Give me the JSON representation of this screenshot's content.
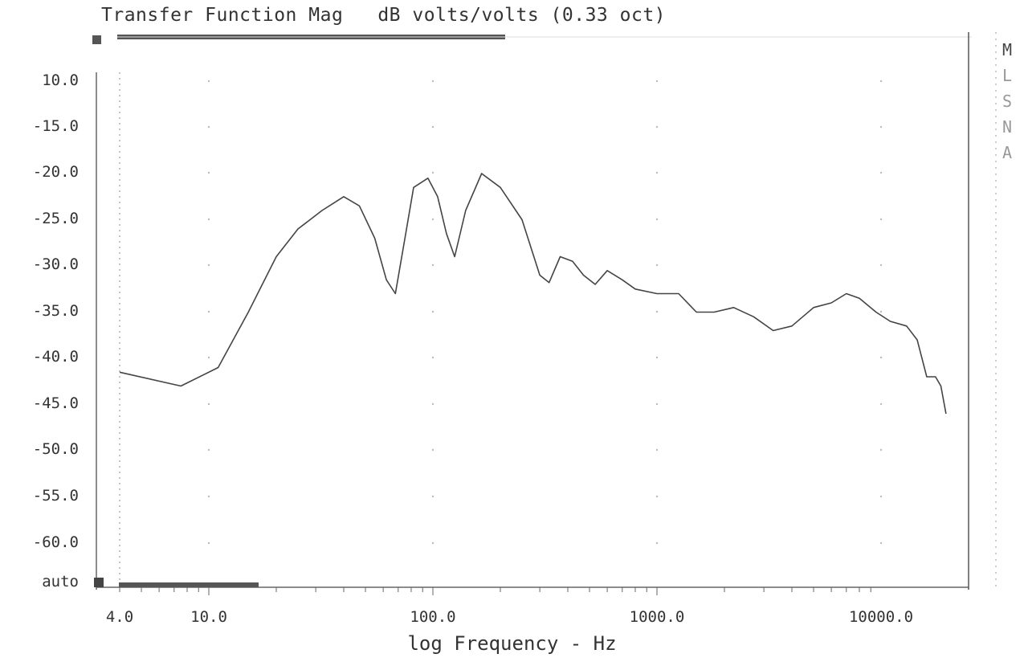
{
  "title": "Transfer Function Mag   dB volts/volts (0.33 oct)",
  "xlabel": "log Frequency - Hz",
  "side_menu": [
    "M",
    "L",
    "S",
    "N",
    "A"
  ],
  "chart_data": {
    "type": "line",
    "title": "Transfer Function Mag   dB volts/volts (0.33 oct)",
    "xlabel": "log Frequency - Hz",
    "ylabel": "",
    "xscale": "log",
    "xlim": [
      3.5,
      20000
    ],
    "ylim": [
      -65,
      12.5
    ],
    "grid": false,
    "y_tick_labels": [
      "10.0",
      "-15.0",
      "-20.0",
      "-25.0",
      "-30.0",
      "-35.0",
      "-40.0",
      "-45.0",
      "-50.0",
      "-55.0",
      "-60.0",
      "auto"
    ],
    "x_tick_labels": [
      {
        "value": 4,
        "label": "4.0"
      },
      {
        "value": 10,
        "label": "10.0"
      },
      {
        "value": 100,
        "label": "100.0"
      },
      {
        "value": 1000,
        "label": "1000.0"
      },
      {
        "value": 10000,
        "label": "10000.0"
      }
    ],
    "series": [
      {
        "x": [
          4,
          7.5,
          11,
          15,
          20,
          25,
          32,
          40,
          47,
          55,
          62,
          68,
          75,
          82,
          95,
          105,
          115,
          125,
          140,
          165,
          200,
          250,
          300,
          330,
          370,
          420,
          470,
          530,
          600,
          700,
          800,
          1000,
          1250,
          1500,
          1800,
          2200,
          2700,
          3300,
          4000,
          5000,
          6000,
          7000,
          8000,
          9500,
          11000,
          13000,
          14500,
          16000,
          17500,
          18500,
          19500
        ],
        "y": [
          -41.5,
          -43,
          -41,
          -35,
          -29,
          -26,
          -24,
          -22.5,
          -23.5,
          -27,
          -31.5,
          -33,
          -27,
          -21.5,
          -20.5,
          -22.5,
          -26.5,
          -29,
          -24,
          -20,
          -21.5,
          -25,
          -31,
          -31.8,
          -29,
          -29.5,
          -31,
          -32,
          -30.5,
          -31.5,
          -32.5,
          -33,
          -33,
          -35,
          -35,
          -34.5,
          -35.5,
          -37,
          -36.5,
          -34.5,
          -34,
          -33,
          -33.5,
          -35,
          -36,
          -36.5,
          -38,
          -42,
          -42,
          -43,
          -46
        ]
      }
    ]
  }
}
